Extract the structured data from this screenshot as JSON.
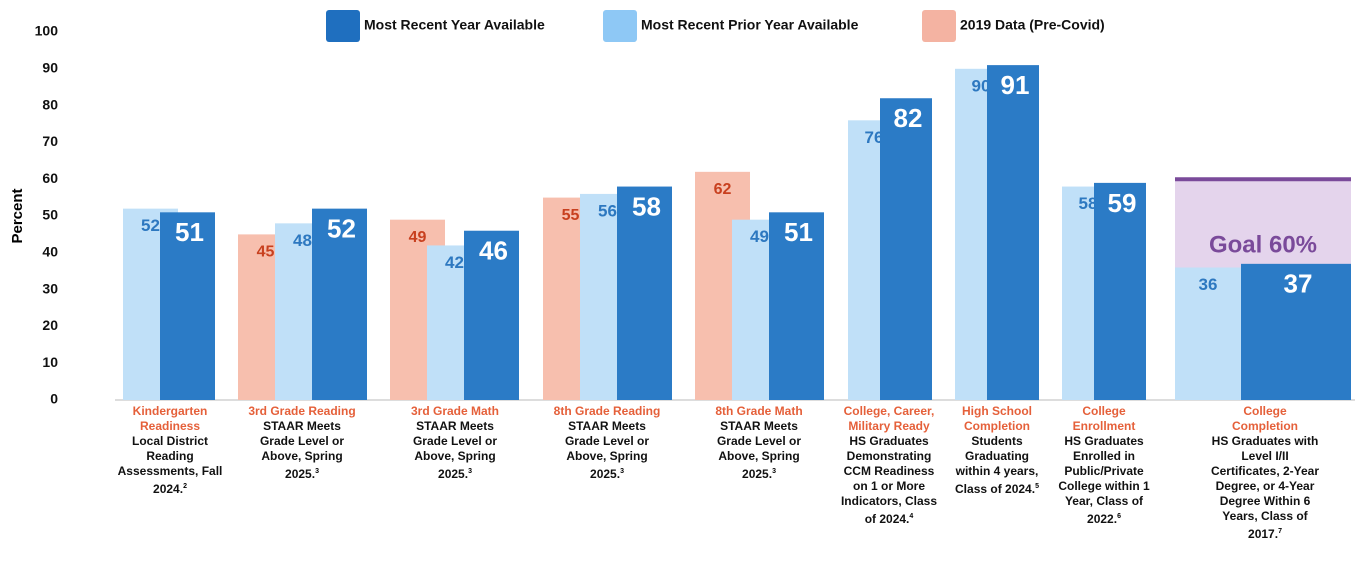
{
  "chart_data": {
    "type": "bar",
    "y_label": "Percent",
    "categories": [
      {
        "title": "Kindergarten Readiness",
        "description": "Local District Reading Assessments, Fall 2024.",
        "footnote": "2"
      },
      {
        "title": "3rd Grade Reading",
        "description": "STAAR Meets Grade Level or Above, Spring 2025.",
        "footnote": "3"
      },
      {
        "title": "3rd Grade Math",
        "description": "STAAR Meets Grade Level or Above, Spring 2025.",
        "footnote": "3"
      },
      {
        "title": "8th Grade Reading",
        "description": "STAAR Meets Grade Level or Above, Spring 2025.",
        "footnote": "3"
      },
      {
        "title": "8th Grade Math",
        "description": "STAAR Meets Grade Level or Above, Spring 2025.",
        "footnote": "3"
      },
      {
        "title": "College, Career, Military Ready",
        "description": "HS Graduates Demonstrating CCM Readiness on 1 or More Indicators, Class of 2024.",
        "footnote": "4"
      },
      {
        "title": "High School Completion",
        "description": "Students Graduating within 4 years, Class of 2024.",
        "footnote": "5"
      },
      {
        "title": "College Enrollment",
        "description": "HS Graduates Enrolled in Public/Private College within 1 Year, Class of 2022.",
        "footnote": "6"
      },
      {
        "title": "College Completion",
        "description": "HS Graduates with Level I/II Certificates, 2-Year Degree, or 4-Year Degree Within 6 Years, Class of 2017.",
        "footnote": "7"
      }
    ],
    "series": [
      {
        "name": "2019 Data (Pre-Covid)",
        "color": "#f7bfae",
        "legend_color": "#f4b3a2",
        "label_color": "#c8401f",
        "values": [
          null,
          45,
          49,
          55,
          62,
          null,
          null,
          null,
          null
        ]
      },
      {
        "name": "Most Recent Prior Year Available",
        "color": "#c0e0f8",
        "legend_color": "#8ec8f5",
        "label_color": "#2d78c0",
        "values": [
          52,
          48,
          42,
          56,
          49,
          76,
          90,
          58,
          36
        ]
      },
      {
        "name": "Most Recent Year Available",
        "color": "#2b7bc6",
        "legend_color": "#1f6fbf",
        "label_color": "#ffffff",
        "values": [
          51,
          52,
          46,
          58,
          51,
          82,
          91,
          59,
          37
        ]
      }
    ],
    "legend_order": [
      2,
      1,
      0
    ],
    "goal": {
      "value": 60,
      "label": "Goal 60%",
      "color": "#7a4a9a",
      "fill": "#e4d4ec"
    },
    "ylim": [
      0,
      100
    ],
    "yticks": [
      0,
      10,
      20,
      30,
      40,
      50,
      60,
      70,
      80,
      90,
      100
    ],
    "grid": false
  }
}
